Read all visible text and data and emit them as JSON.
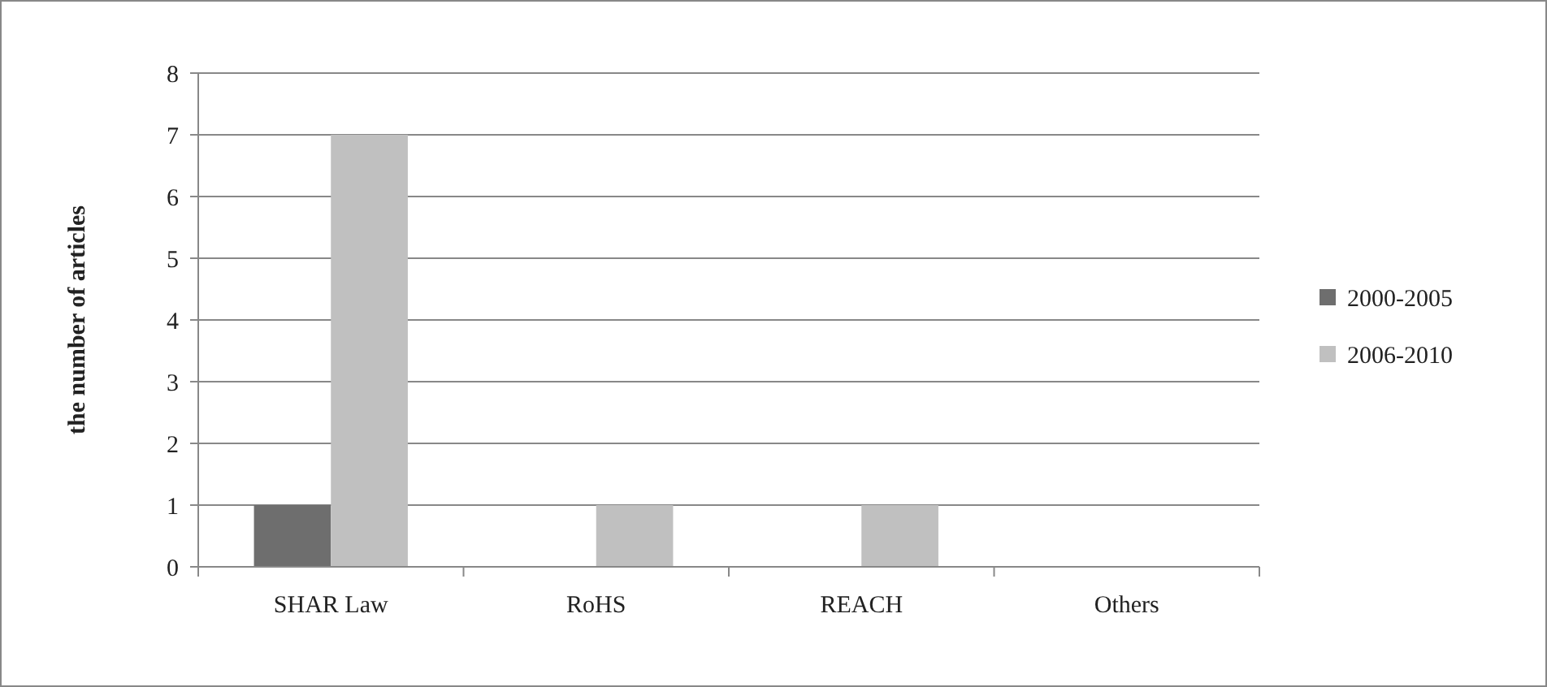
{
  "chart_data": {
    "type": "bar",
    "ylabel": "the number of  articles",
    "categories": [
      "SHAR Law",
      "RoHS",
      "REACH",
      "Others"
    ],
    "series": [
      {
        "name": "2000-2005",
        "color": "#6e6e6e",
        "values": [
          1,
          0,
          0,
          0
        ]
      },
      {
        "name": "2006-2010",
        "color": "#c0c0c0",
        "values": [
          7,
          1,
          1,
          0
        ]
      }
    ],
    "ylim": [
      0,
      8
    ],
    "yticks": [
      0,
      1,
      2,
      3,
      4,
      5,
      6,
      7,
      8
    ],
    "grid": "y",
    "legend": "right"
  }
}
